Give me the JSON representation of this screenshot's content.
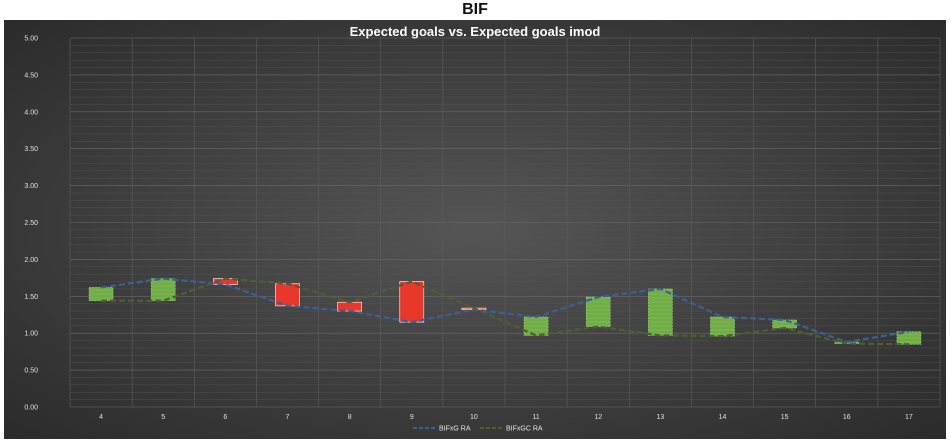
{
  "page_title": "BIF",
  "chart_data": {
    "type": "line",
    "title": "Expected goals vs. Expected goals imod",
    "xlabel": "",
    "ylabel": "",
    "categories": [
      "4",
      "5",
      "6",
      "7",
      "8",
      "9",
      "10",
      "11",
      "12",
      "13",
      "14",
      "15",
      "16",
      "17"
    ],
    "ylim": [
      0,
      5
    ],
    "y_ticks": [
      "0.00",
      "0.50",
      "1.00",
      "1.50",
      "2.00",
      "2.50",
      "3.00",
      "3.50",
      "4.00",
      "4.50",
      "5.00"
    ],
    "grid": true,
    "legend_position": "bottom",
    "series": [
      {
        "name": "BIFxG RA",
        "color": "#3d5f95",
        "values": [
          1.62,
          1.74,
          1.66,
          1.37,
          1.3,
          1.15,
          1.32,
          1.22,
          1.49,
          1.6,
          1.22,
          1.18,
          0.88,
          1.02
        ]
      },
      {
        "name": "BIFxGC RA",
        "color": "#4f5e33",
        "values": [
          1.44,
          1.44,
          1.74,
          1.67,
          1.42,
          1.7,
          1.34,
          0.97,
          1.09,
          0.97,
          0.96,
          1.07,
          0.86,
          0.85
        ]
      }
    ],
    "colors": {
      "up": "#70ad47",
      "down": "#e8382c",
      "background": "#3b3b3b"
    }
  }
}
